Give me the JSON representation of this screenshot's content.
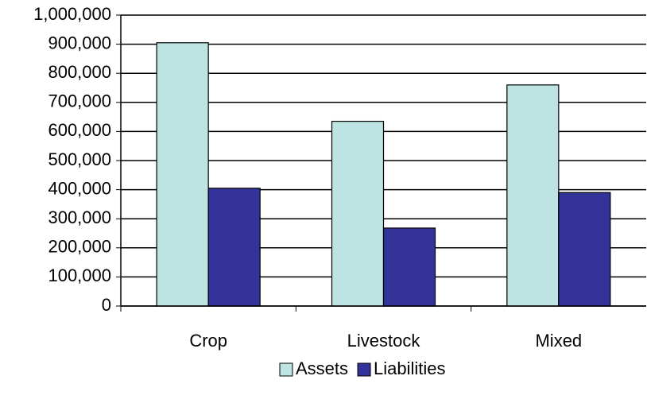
{
  "chart_data": {
    "type": "bar",
    "categories": [
      "Crop",
      "Livestock",
      "Mixed"
    ],
    "series": [
      {
        "name": "Assets",
        "color": "#bde3e3",
        "values": [
          905000,
          635000,
          760000
        ]
      },
      {
        "name": "Liabilities",
        "color": "#333399",
        "values": [
          405000,
          268000,
          390000
        ]
      }
    ],
    "ylim": [
      0,
      1000000
    ],
    "yticks": [
      0,
      {
        "value": 100000,
        "label": "100,000"
      },
      {
        "value": 200000,
        "label": "200,000"
      },
      {
        "value": 300000,
        "label": "300,000"
      },
      {
        "value": 400000,
        "label": "400,000"
      },
      {
        "value": 500000,
        "label": "500,000"
      },
      {
        "value": 600000,
        "label": "600,000"
      },
      {
        "value": 700000,
        "label": "700,000"
      },
      {
        "value": 800000,
        "label": "800,000"
      },
      {
        "value": 900000,
        "label": "900,000"
      },
      {
        "value": 1000000,
        "label": "1,000,000"
      }
    ],
    "grid": true,
    "legend": "bottom"
  }
}
